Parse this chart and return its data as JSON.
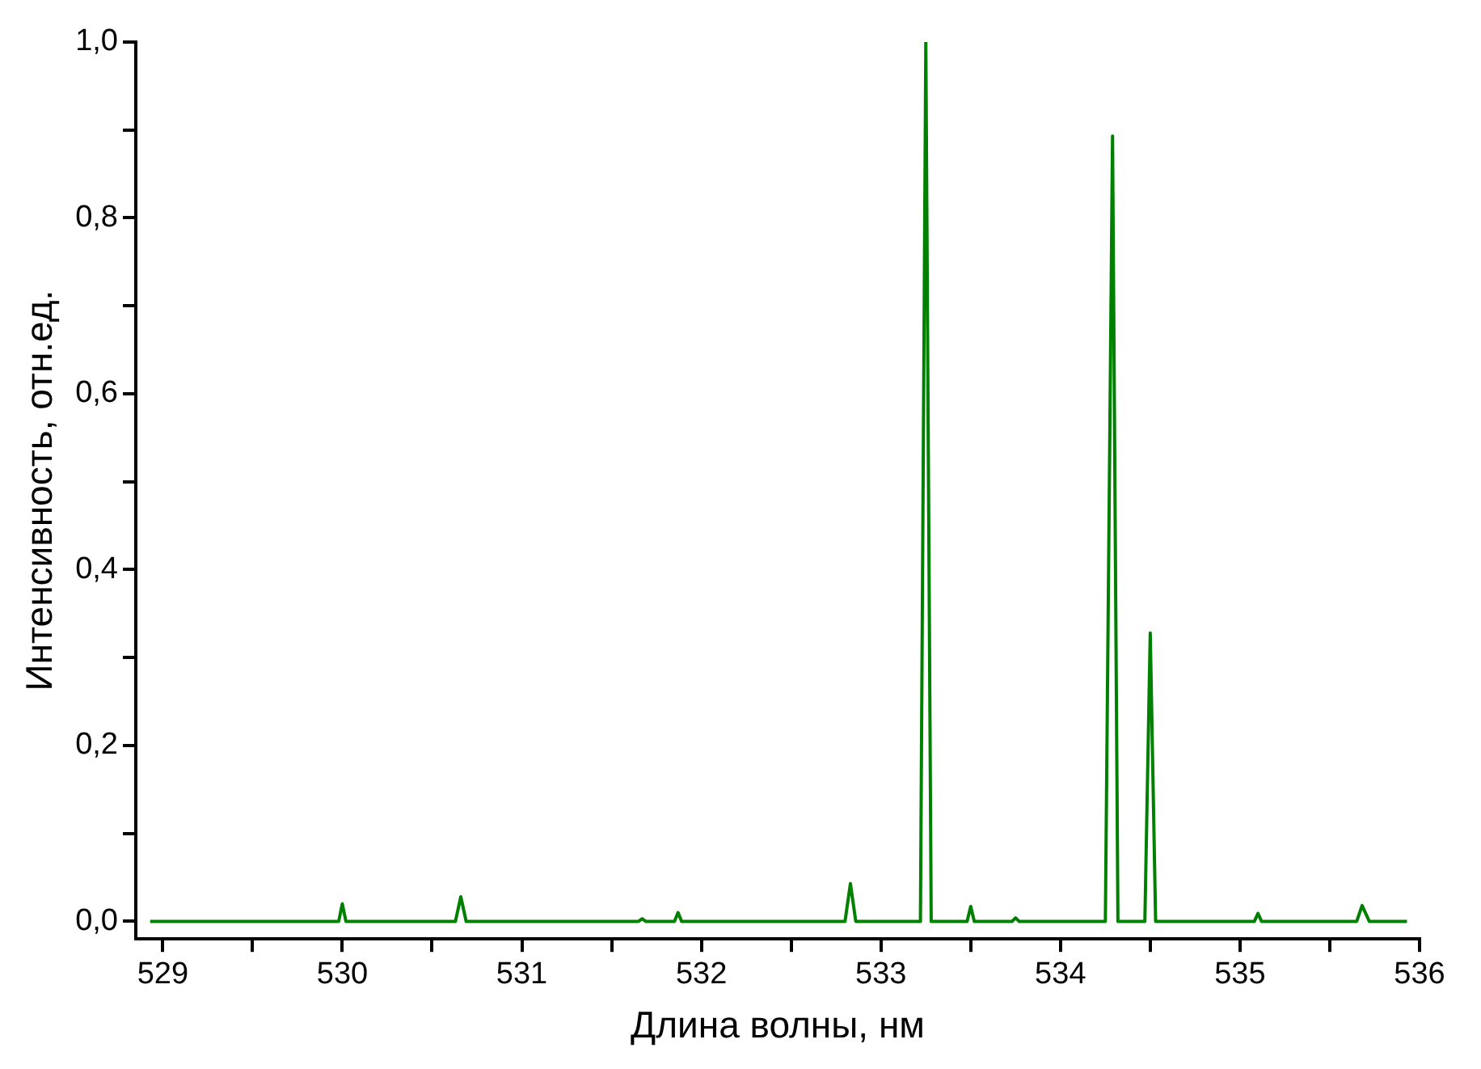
{
  "chart_data": {
    "type": "line",
    "xlabel": "Длина волны, нм",
    "ylabel": "Интенсивность, отн.ед.",
    "x": [
      528.93,
      529.98,
      530.0,
      530.02,
      530.63,
      530.66,
      530.69,
      531.65,
      531.67,
      531.69,
      531.85,
      531.87,
      531.89,
      532.8,
      532.83,
      532.86,
      533.22,
      533.25,
      533.28,
      533.48,
      533.5,
      533.52,
      533.73,
      533.75,
      533.77,
      534.25,
      534.29,
      534.32,
      534.47,
      534.5,
      534.53,
      535.08,
      535.1,
      535.12,
      535.65,
      535.68,
      535.72,
      535.93
    ],
    "series": [
      {
        "color": "#008000",
        "values": [
          0,
          0,
          0.02,
          0,
          0,
          0.028,
          0,
          0,
          0.003,
          0,
          0,
          0.01,
          0,
          0,
          0.043,
          0,
          0,
          1.0,
          0,
          0,
          0.017,
          0,
          0,
          0.004,
          0,
          0,
          0.893,
          0,
          0,
          0.328,
          0,
          0,
          0.009,
          0,
          0,
          0.018,
          0,
          0
        ]
      }
    ],
    "xlim": [
      528.85,
      536
    ],
    "ylim": [
      -0.02,
      1.0
    ],
    "xticks": [
      529,
      {
        "value": 529.5,
        "label": null
      },
      530,
      {
        "value": 530.5,
        "label": null
      },
      531,
      {
        "value": 531.5,
        "label": null
      },
      532,
      {
        "value": 532.5,
        "label": null
      },
      533,
      {
        "value": 533.5,
        "label": null
      },
      534,
      {
        "value": 534.5,
        "label": null
      },
      535,
      {
        "value": 535.5,
        "label": null
      },
      536
    ],
    "yticks": [
      {
        "value": 0,
        "label": "0,0"
      },
      {
        "value": 0.1,
        "label": null
      },
      {
        "value": 0.2,
        "label": "0,2"
      },
      {
        "value": 0.3,
        "label": null
      },
      {
        "value": 0.4,
        "label": "0,4"
      },
      {
        "value": 0.5,
        "label": null
      },
      {
        "value": 0.6,
        "label": "0,6"
      },
      {
        "value": 0.7,
        "label": null
      },
      {
        "value": 0.8,
        "label": "0,8"
      },
      {
        "value": 0.9,
        "label": null
      },
      {
        "value": 1.0,
        "label": "1,0"
      }
    ],
    "grid": false,
    "legend": false,
    "marker": "none",
    "line_style": "solid"
  }
}
